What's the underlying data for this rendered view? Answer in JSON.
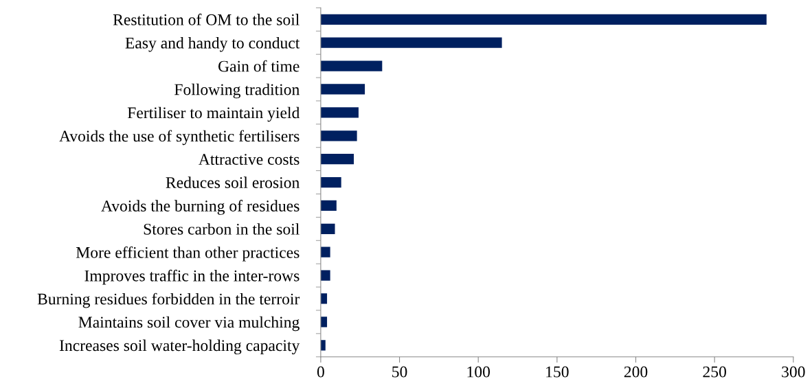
{
  "chart_data": {
    "type": "bar",
    "orientation": "horizontal",
    "categories": [
      "Restitution of OM to the soil",
      "Easy and handy to conduct",
      "Gain of time",
      "Following tradition",
      "Fertiliser to maintain yield",
      "Avoids the use of synthetic fertilisers",
      "Attractive costs",
      "Reduces soil erosion",
      "Avoids the burning of residues",
      "Stores carbon in the soil",
      "More efficient than other practices",
      "Improves traffic in the inter-rows",
      "Burning residues forbidden in the terroir",
      "Maintains soil cover via mulching",
      "Increases soil water-holding capacity"
    ],
    "values": [
      283,
      115,
      39,
      28,
      24,
      23,
      21,
      13,
      10,
      9,
      6,
      6,
      4,
      4,
      3
    ],
    "color": "#002060",
    "xlim": [
      0,
      300
    ],
    "xticks": [
      0,
      50,
      100,
      150,
      200,
      250,
      300
    ],
    "grid": false,
    "legend": false
  }
}
